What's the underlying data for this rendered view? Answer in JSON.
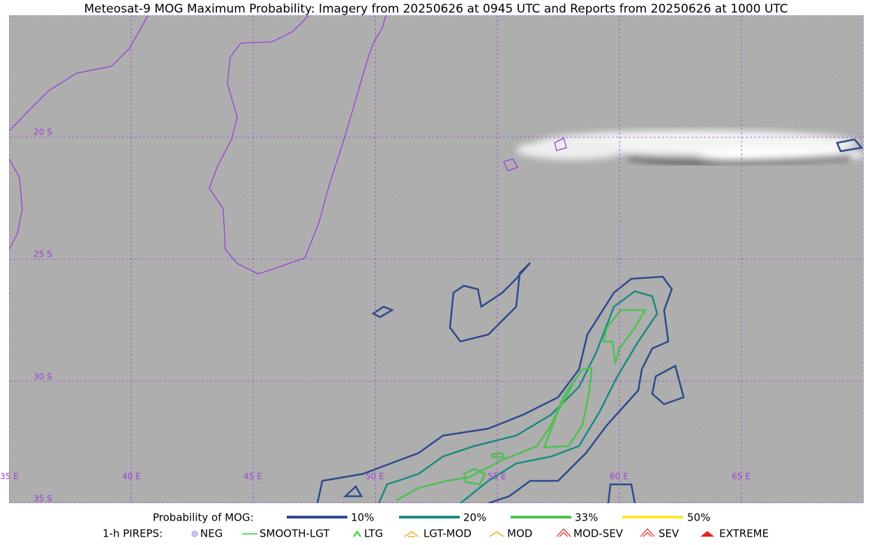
{
  "title": "Meteosat-9 MOG Maximum Probability: Imagery from 20250626 at 0945 UTC and Reports from 20250626 at 1000 UTC",
  "map": {
    "lat_labels": [
      "20 S",
      "25 S",
      "30 S",
      "35 S"
    ],
    "lon_labels": [
      "35 E",
      "40 E",
      "45 E",
      "50 E",
      "55 E",
      "60 E",
      "65 E"
    ]
  },
  "legend": {
    "probability": {
      "label": "Probability of MOG:",
      "items": [
        "10%",
        "20%",
        "33%",
        "50%"
      ]
    },
    "pireps": {
      "label": "1-h PIREPS:",
      "items": [
        "NEG",
        "SMOOTH-LGT",
        "LTG",
        "LGT-MOD",
        "MOD",
        "MOD-SEV",
        "SEV",
        "EXTREME"
      ]
    }
  }
}
